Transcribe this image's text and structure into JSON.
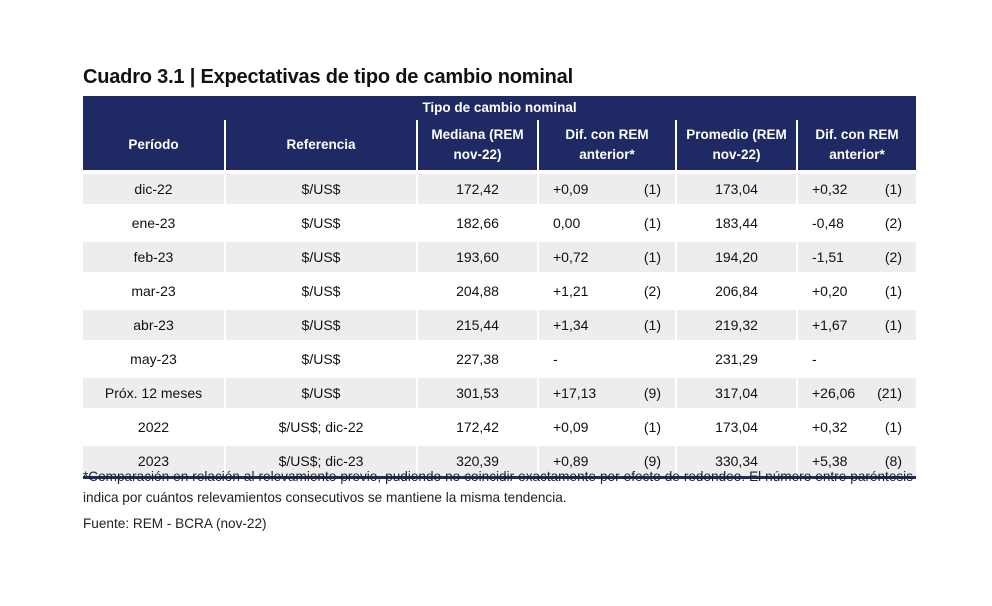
{
  "title": "Cuadro 3.1 | Expectativas de tipo de cambio nominal",
  "banner": "Tipo de cambio nominal",
  "headers": {
    "periodo": "Período",
    "referencia": "Referencia",
    "mediana_l1": "Mediana (REM",
    "mediana_l2": "nov-22)",
    "dif1_l1": "Dif. con REM",
    "dif1_l2": "anterior*",
    "promedio_l1": "Promedio (REM",
    "promedio_l2": "nov-22)",
    "dif2_l1": "Dif. con REM",
    "dif2_l2": "anterior*"
  },
  "rows": [
    {
      "periodo": "dic-22",
      "referencia": "$/US$",
      "mediana": "172,42",
      "dif1": "+0,09",
      "n1": "(1)",
      "promedio": "173,04",
      "dif2": "+0,32",
      "n2": "(1)"
    },
    {
      "periodo": "ene-23",
      "referencia": "$/US$",
      "mediana": "182,66",
      "dif1": "0,00",
      "n1": "(1)",
      "promedio": "183,44",
      "dif2": "-0,48",
      "n2": "(2)"
    },
    {
      "periodo": "feb-23",
      "referencia": "$/US$",
      "mediana": "193,60",
      "dif1": "+0,72",
      "n1": "(1)",
      "promedio": "194,20",
      "dif2": "-1,51",
      "n2": "(2)"
    },
    {
      "periodo": "mar-23",
      "referencia": "$/US$",
      "mediana": "204,88",
      "dif1": "+1,21",
      "n1": "(2)",
      "promedio": "206,84",
      "dif2": "+0,20",
      "n2": "(1)"
    },
    {
      "periodo": "abr-23",
      "referencia": "$/US$",
      "mediana": "215,44",
      "dif1": "+1,34",
      "n1": "(1)",
      "promedio": "219,32",
      "dif2": "+1,67",
      "n2": "(1)"
    },
    {
      "periodo": "may-23",
      "referencia": "$/US$",
      "mediana": "227,38",
      "dif1": "-",
      "n1": "",
      "promedio": "231,29",
      "dif2": "-",
      "n2": ""
    },
    {
      "periodo": "Próx. 12 meses",
      "referencia": "$/US$",
      "mediana": "301,53",
      "dif1": "+17,13",
      "n1": "(9)",
      "promedio": "317,04",
      "dif2": "+26,06",
      "n2": "(21)"
    },
    {
      "periodo": "2022",
      "referencia": "$/US$; dic-22",
      "mediana": "172,42",
      "dif1": "+0,09",
      "n1": "(1)",
      "promedio": "173,04",
      "dif2": "+0,32",
      "n2": "(1)"
    },
    {
      "periodo": "2023",
      "referencia": "$/US$; dic-23",
      "mediana": "320,39",
      "dif1": "+0,89",
      "n1": "(9)",
      "promedio": "330,34",
      "dif2": "+5,38",
      "n2": "(8)"
    }
  ],
  "note": "*Comparación en relación al relevamiento previo, pudiendo no coincidir exactamente por efecto de redondeo. El número entre paréntesis indica por cuántos relevamientos consecutivos se mantiene la misma tendencia.",
  "source": "Fuente: REM - BCRA (nov-22)"
}
